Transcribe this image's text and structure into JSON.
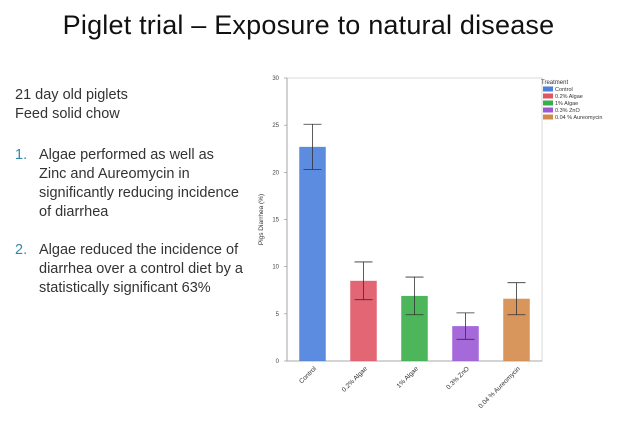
{
  "slide": {
    "title": "Piglet trial – Exposure to natural disease",
    "intro": [
      "21 day old piglets",
      "Feed solid chow"
    ],
    "points": [
      {
        "num": "1.",
        "text": "Algae performed as well as Zinc and Aureomycin in significantly reducing incidence of diarrhea"
      },
      {
        "num": "2.",
        "text": "Algae reduced the incidence of diarrhea over a control diet by a statistically significant 63%"
      }
    ]
  },
  "chart_data": {
    "type": "bar",
    "ylabel": "Pigs  Diarrhea (%)",
    "ylim": [
      0,
      30
    ],
    "yticks": [
      0,
      5,
      10,
      15,
      20,
      25,
      30
    ],
    "categories": [
      "Control",
      "0.2% Algae",
      "1% Algae",
      "0.3% ZnO",
      "0.04 % Aureomycin"
    ],
    "values": [
      22.7,
      8.5,
      6.9,
      3.7,
      6.6
    ],
    "error": [
      2.4,
      2.0,
      2.0,
      1.4,
      1.7
    ],
    "colors": [
      "#4a7fdc",
      "#e05566",
      "#3aae48",
      "#9b59d6",
      "#d4894a"
    ],
    "legend": {
      "title": "Treatment",
      "placement": "right",
      "entries": [
        "Control",
        "0.2% Algae",
        "1% Algae",
        "0.3% ZnO",
        "0.04 % Aureomycin"
      ]
    },
    "grid": false
  }
}
